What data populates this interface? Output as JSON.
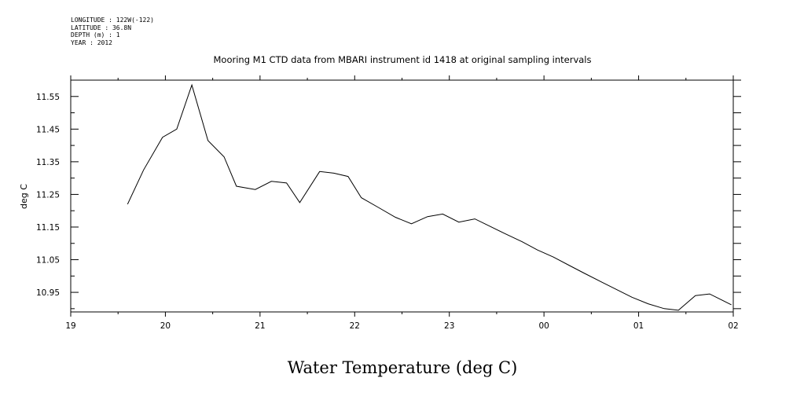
{
  "header": {
    "lines": [
      "LONGITUDE : 122W(-122)",
      "LATITUDE : 36.8N",
      "DEPTH (m) : 1",
      "YEAR : 2012"
    ]
  },
  "chart_data": {
    "type": "line",
    "title": "Mooring M1 CTD data from MBARI instrument id 1418 at original sampling intervals",
    "xlabel": "Water Temperature (deg C)",
    "ylabel": "deg C",
    "x_tick_labels": [
      "19",
      "20",
      "21",
      "22",
      "23",
      "00",
      "01",
      "02"
    ],
    "y_tick_labels": [
      "11.55",
      "11.45",
      "11.35",
      "11.25",
      "11.15",
      "11.05",
      "10.95"
    ],
    "y_ticks": [
      11.55,
      11.45,
      11.35,
      11.25,
      11.15,
      11.05,
      10.95
    ],
    "xlim": [
      19,
      26
    ],
    "ylim": [
      10.89,
      11.6
    ],
    "grid": false,
    "series": [
      {
        "x": [
          19.6,
          19.77,
          19.97,
          20.12,
          20.28,
          20.45,
          20.62,
          20.75,
          20.95,
          21.12,
          21.28,
          21.42,
          21.63,
          21.78,
          21.93,
          22.07,
          22.25,
          22.43,
          22.6,
          22.77,
          22.93,
          23.1,
          23.27,
          23.43,
          23.6,
          23.77,
          23.93,
          24.1,
          24.27,
          24.43,
          24.6,
          24.77,
          24.93,
          25.1,
          25.27,
          25.42,
          25.6,
          25.75,
          25.98
        ],
        "y": [
          11.22,
          11.325,
          11.425,
          11.45,
          11.585,
          11.415,
          11.365,
          11.275,
          11.265,
          11.29,
          11.285,
          11.225,
          11.32,
          11.315,
          11.305,
          11.24,
          11.21,
          11.18,
          11.16,
          11.182,
          11.19,
          11.165,
          11.175,
          11.152,
          11.128,
          11.105,
          11.08,
          11.058,
          11.032,
          11.008,
          10.983,
          10.958,
          10.935,
          10.915,
          10.9,
          10.895,
          10.94,
          10.945,
          10.912
        ]
      }
    ]
  }
}
